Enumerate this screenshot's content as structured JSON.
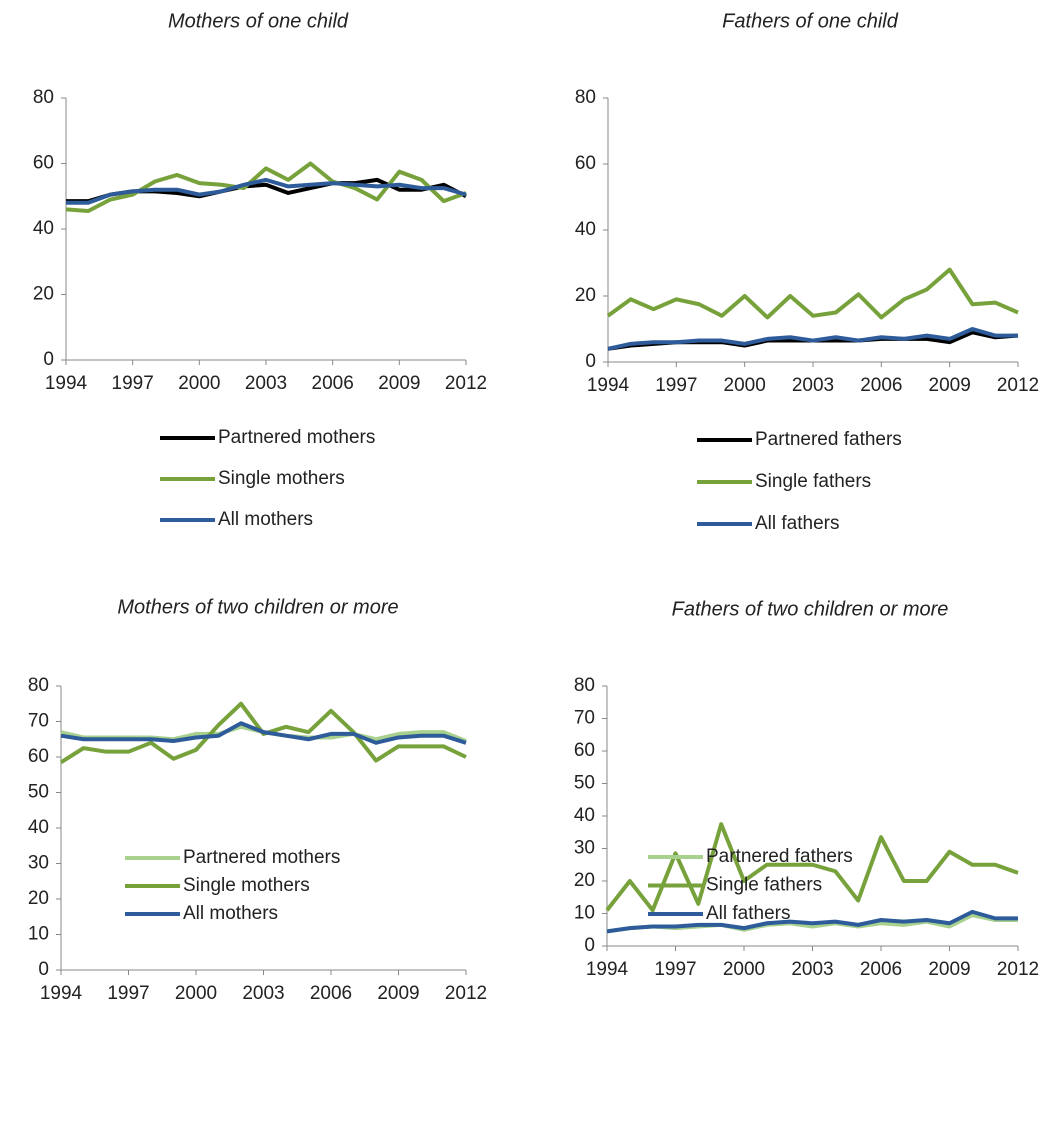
{
  "chart_data": [
    {
      "type": "line",
      "title": "Mothers of one child",
      "x": [
        1994,
        1995,
        1996,
        1997,
        1998,
        1999,
        2000,
        2001,
        2002,
        2003,
        2004,
        2005,
        2006,
        2007,
        2008,
        2009,
        2010,
        2011,
        2012
      ],
      "xlim": [
        1994,
        2012
      ],
      "xticks": [
        1994,
        1997,
        2000,
        2003,
        2006,
        2009,
        2012
      ],
      "ylim": [
        0,
        80
      ],
      "yticks": [
        0,
        20,
        40,
        60,
        80
      ],
      "legend": "bottom",
      "series": [
        {
          "name": "Partnered mothers",
          "color": "#000000",
          "values": [
            48.5,
            48.5,
            50.5,
            51.5,
            51.5,
            51,
            50,
            51.5,
            53,
            53.5,
            51,
            52.5,
            54,
            54,
            55,
            52,
            52,
            53.5,
            50
          ]
        },
        {
          "name": "Single mothers",
          "color": "#77a23b",
          "values": [
            46,
            45.5,
            49,
            50.5,
            54.5,
            56.5,
            54,
            53.5,
            52.5,
            58.5,
            55,
            60,
            54.5,
            52.5,
            49,
            57.5,
            55,
            48.5,
            51
          ]
        },
        {
          "name": "All mothers",
          "color": "#2e5c9a",
          "values": [
            48,
            48,
            50.5,
            51.5,
            52,
            52,
            50.5,
            51.5,
            53.5,
            55,
            53,
            53.5,
            54,
            53.5,
            53,
            53.5,
            52.5,
            52.5,
            50.5
          ]
        }
      ]
    },
    {
      "type": "line",
      "title": "Fathers of one child",
      "x": [
        1994,
        1995,
        1996,
        1997,
        1998,
        1999,
        2000,
        2001,
        2002,
        2003,
        2004,
        2005,
        2006,
        2007,
        2008,
        2009,
        2010,
        2011,
        2012
      ],
      "xlim": [
        1994,
        2012
      ],
      "xticks": [
        1994,
        1997,
        2000,
        2003,
        2006,
        2009,
        2012
      ],
      "ylim": [
        0,
        80
      ],
      "yticks": [
        0,
        20,
        40,
        60,
        80
      ],
      "legend": "bottom",
      "series": [
        {
          "name": "Partnered fathers",
          "color": "#000000",
          "values": [
            4,
            5,
            5.5,
            6,
            6,
            6,
            5,
            6.5,
            6.5,
            6.5,
            6.5,
            6.5,
            7,
            7,
            7,
            6,
            9,
            7.5,
            8
          ]
        },
        {
          "name": "Single fathers",
          "color": "#77a23b",
          "values": [
            14,
            19,
            16,
            19,
            17.5,
            14,
            20,
            13.5,
            20,
            14,
            15,
            20.5,
            13.5,
            19,
            22,
            28,
            17.5,
            18,
            15
          ]
        },
        {
          "name": "All fathers",
          "color": "#2e5c9a",
          "values": [
            4,
            5.5,
            6,
            6,
            6.5,
            6.5,
            5.5,
            7,
            7.5,
            6.5,
            7.5,
            6.5,
            7.5,
            7,
            8,
            7,
            10,
            8,
            8
          ]
        }
      ]
    },
    {
      "type": "line",
      "title": "Mothers of two children or more",
      "x": [
        1994,
        1995,
        1996,
        1997,
        1998,
        1999,
        2000,
        2001,
        2002,
        2003,
        2004,
        2005,
        2006,
        2007,
        2008,
        2009,
        2010,
        2011,
        2012
      ],
      "xlim": [
        1994,
        2012
      ],
      "xticks": [
        1994,
        1997,
        2000,
        2003,
        2006,
        2009,
        2012
      ],
      "ylim": [
        0,
        80
      ],
      "yticks": [
        0,
        10,
        20,
        30,
        40,
        50,
        60,
        70,
        80
      ],
      "legend": "bottom",
      "series": [
        {
          "name": "Partnered mothers",
          "color": "#a9d18e",
          "values": [
            67,
            65.5,
            65.5,
            65.5,
            65.5,
            65,
            66.5,
            66.5,
            68.5,
            67,
            66,
            65.5,
            65.5,
            66.5,
            65,
            66.5,
            67,
            67,
            64.5
          ]
        },
        {
          "name": "Single mothers",
          "color": "#77a23b",
          "values": [
            58.5,
            62.5,
            61.5,
            61.5,
            64,
            59.5,
            62,
            69,
            75,
            66.5,
            68.5,
            67,
            73,
            67,
            59,
            63,
            63,
            63,
            60
          ]
        },
        {
          "name": "All mothers",
          "color": "#2e5c9a",
          "values": [
            66,
            65,
            65,
            65,
            65,
            64.5,
            65.5,
            66,
            69.5,
            67,
            66,
            65,
            66.5,
            66.5,
            64,
            65.5,
            66,
            66,
            64
          ]
        }
      ]
    },
    {
      "type": "line",
      "title": "Fathers of two children or more",
      "x": [
        1994,
        1995,
        1996,
        1997,
        1998,
        1999,
        2000,
        2001,
        2002,
        2003,
        2004,
        2005,
        2006,
        2007,
        2008,
        2009,
        2010,
        2011,
        2012
      ],
      "xlim": [
        1994,
        2012
      ],
      "xticks": [
        1994,
        1997,
        2000,
        2003,
        2006,
        2009,
        2012
      ],
      "ylim": [
        0,
        80
      ],
      "yticks": [
        0,
        10,
        20,
        30,
        40,
        50,
        60,
        70,
        80
      ],
      "legend": "bottom",
      "series": [
        {
          "name": "Partnered fathers",
          "color": "#a9d18e",
          "values": [
            4.5,
            5.5,
            6,
            5.5,
            6,
            6.5,
            5,
            6.5,
            7,
            6,
            7,
            6,
            7,
            6.5,
            7.5,
            6,
            9.5,
            8,
            8
          ]
        },
        {
          "name": "Single fathers",
          "color": "#77a23b",
          "values": [
            11,
            20,
            11,
            28.5,
            13,
            37.5,
            20,
            25,
            25,
            25,
            23,
            14,
            33.5,
            20,
            20,
            29,
            25,
            25,
            22.5
          ]
        },
        {
          "name": "All fathers",
          "color": "#2e5c9a",
          "values": [
            4.5,
            5.5,
            6,
            6,
            6.5,
            6.5,
            5.5,
            7,
            7.5,
            7,
            7.5,
            6.5,
            8,
            7.5,
            8,
            7,
            10.5,
            8.5,
            8.5
          ]
        }
      ]
    }
  ]
}
